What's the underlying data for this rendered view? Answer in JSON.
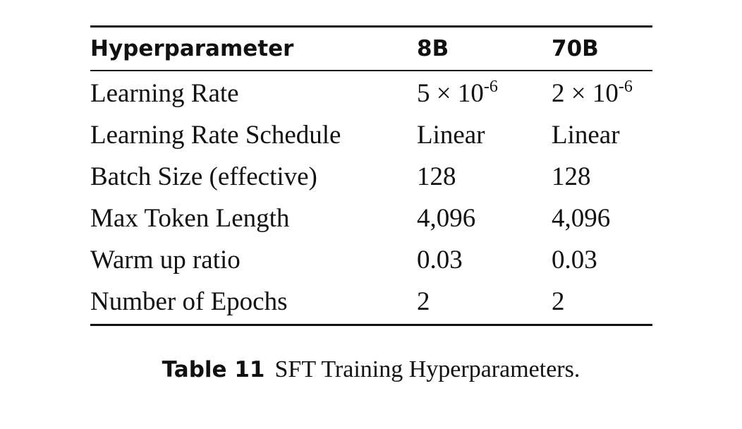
{
  "table": {
    "headers": [
      "Hyperparameter",
      "8B",
      "70B"
    ],
    "rows": [
      {
        "name": "Learning Rate",
        "v8b_base": "5 × 10",
        "v8b_exp": "-6",
        "v70b_base": "2 × 10",
        "v70b_exp": "-6"
      },
      {
        "name": "Learning Rate Schedule",
        "v8b": "Linear",
        "v70b": "Linear"
      },
      {
        "name": "Batch Size (effective)",
        "v8b": "128",
        "v70b": "128"
      },
      {
        "name": "Max Token Length",
        "v8b": "4,096",
        "v70b": "4,096"
      },
      {
        "name": "Warm up ratio",
        "v8b": "0.03",
        "v70b": "0.03"
      },
      {
        "name": "Number of Epochs",
        "v8b": "2",
        "v70b": "2"
      }
    ]
  },
  "caption": {
    "label": "Table 11",
    "text": "SFT Training Hyperparameters."
  }
}
